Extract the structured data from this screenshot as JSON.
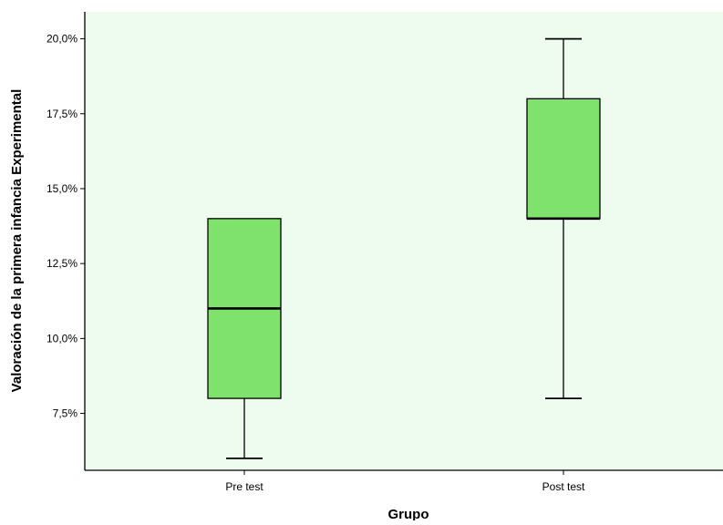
{
  "chart_data": {
    "type": "boxplot",
    "title": "",
    "xlabel": "Grupo",
    "ylabel": "Valoración de la primera infancia  Experimental",
    "ylim": [
      5.6,
      20.9
    ],
    "yticks": [
      7.5,
      10.0,
      12.5,
      15.0,
      17.5,
      20.0
    ],
    "ytick_labels": [
      "7,5%",
      "10,0%",
      "12,5%",
      "15,0%",
      "17,5%",
      "20,0%"
    ],
    "categories": [
      "Pre test",
      "Post test"
    ],
    "boxes": [
      {
        "category": "Pre test",
        "min": 6.0,
        "q1": 8.0,
        "median": 11.0,
        "q3": 14.0,
        "max": 14.0
      },
      {
        "category": "Post test",
        "min": 8.0,
        "q1": 14.0,
        "median": 14.0,
        "q3": 18.0,
        "max": 20.0
      }
    ],
    "grid": false,
    "legend": "none",
    "colors": {
      "plot_background": "#edfcef",
      "box_fill": "#7ee26c",
      "box_stroke": "#000000",
      "axis": "#000000"
    }
  }
}
